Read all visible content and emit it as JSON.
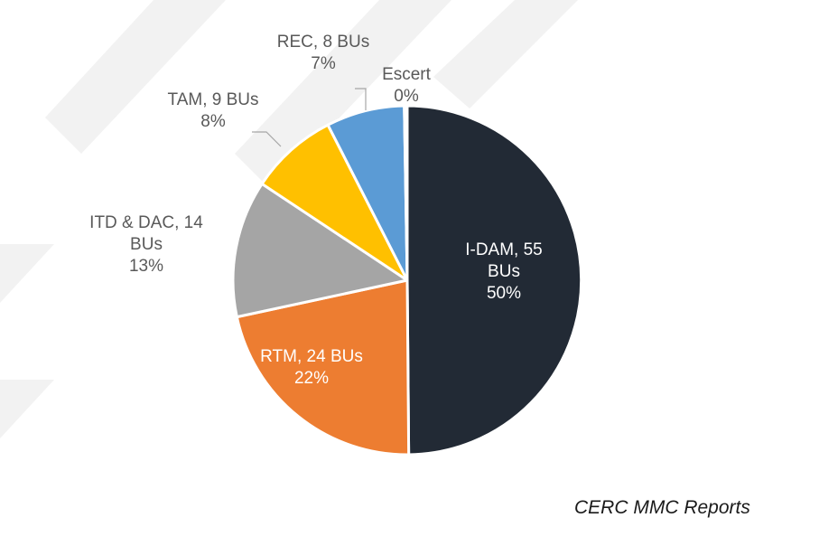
{
  "chart_data": {
    "type": "pie",
    "slices": [
      {
        "name": "I-DAM",
        "label_lines": [
          "I-DAM, 55",
          "BUs",
          "50%"
        ],
        "value": 55,
        "percent": 50,
        "color": "#222a35"
      },
      {
        "name": "RTM",
        "label_lines": [
          "RTM, 24 BUs",
          "22%"
        ],
        "value": 24,
        "percent": 22,
        "color": "#ed7d31"
      },
      {
        "name": "ITD & DAC",
        "label_lines": [
          "ITD & DAC, 14",
          "BUs",
          "13%"
        ],
        "value": 14,
        "percent": 13,
        "color": "#a5a5a5"
      },
      {
        "name": "TAM",
        "label_lines": [
          "TAM, 9 BUs",
          "8%"
        ],
        "value": 9,
        "percent": 8,
        "color": "#ffc000"
      },
      {
        "name": "REC",
        "label_lines": [
          "REC, 8 BUs",
          "7%"
        ],
        "value": 8,
        "percent": 7,
        "color": "#5b9bd5"
      },
      {
        "name": "Escert",
        "label_lines": [
          "Escert",
          "0%"
        ],
        "value": 0.3,
        "percent": 0,
        "color": "#ffffff"
      }
    ]
  },
  "source": "CERC MMC Reports"
}
